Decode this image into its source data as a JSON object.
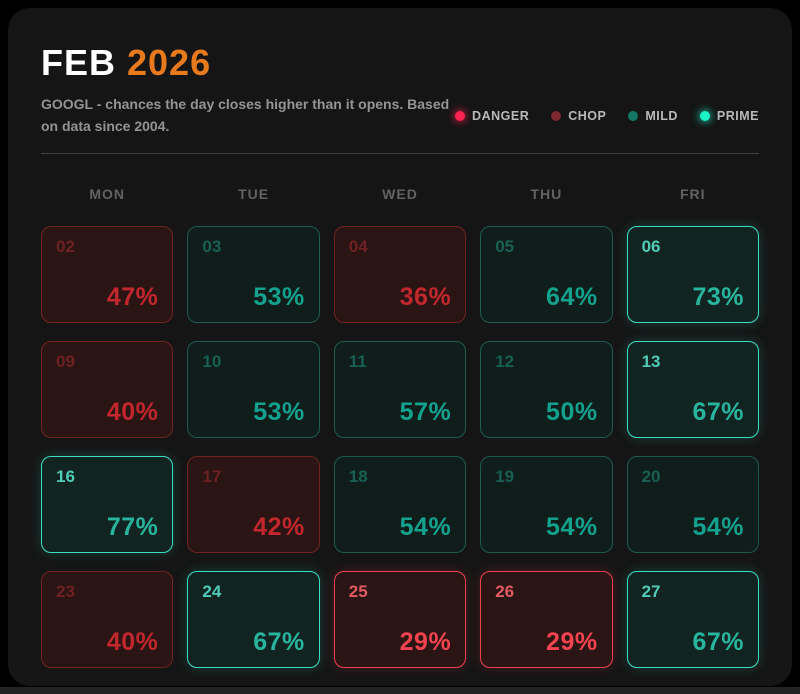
{
  "header": {
    "month": "FEB",
    "year": "2026",
    "subtitle": "GOOGL - chances the day closes higher than it opens. Based on data since 2004."
  },
  "legend": {
    "items": [
      {
        "key": "danger",
        "label": "DANGER",
        "color": "#fb2150"
      },
      {
        "key": "chop",
        "label": "CHOP",
        "color": "#7c282c"
      },
      {
        "key": "mild",
        "label": "MILD",
        "color": "#147763"
      },
      {
        "key": "prime",
        "label": "PRIME",
        "color": "#1cf2c7"
      }
    ]
  },
  "colors": {
    "accent_orange": "#e87a1e",
    "danger_text": "#f2434f",
    "chop_text": "#c1272c",
    "mild_text": "#13a28d",
    "prime_text": "#28b59e",
    "card_background": "#151515"
  },
  "chart_data": {
    "type": "heatmap",
    "title": "FEB 2026",
    "subtitle": "GOOGL - chances the day closes higher than it opens. Based on data since 2004.",
    "x_categories": [
      "MON",
      "TUE",
      "WED",
      "THU",
      "FRI"
    ],
    "legend_entries": [
      "DANGER",
      "CHOP",
      "MILD",
      "PRIME"
    ],
    "legend_position": "top-right",
    "value_unit": "%",
    "cells": [
      {
        "date": 2,
        "weekday": "MON",
        "week": 1,
        "percent": 47,
        "category": "chop"
      },
      {
        "date": 3,
        "weekday": "TUE",
        "week": 1,
        "percent": 53,
        "category": "mild"
      },
      {
        "date": 4,
        "weekday": "WED",
        "week": 1,
        "percent": 36,
        "category": "chop"
      },
      {
        "date": 5,
        "weekday": "THU",
        "week": 1,
        "percent": 64,
        "category": "mild"
      },
      {
        "date": 6,
        "weekday": "FRI",
        "week": 1,
        "percent": 73,
        "category": "prime"
      },
      {
        "date": 9,
        "weekday": "MON",
        "week": 2,
        "percent": 40,
        "category": "chop"
      },
      {
        "date": 10,
        "weekday": "TUE",
        "week": 2,
        "percent": 53,
        "category": "mild"
      },
      {
        "date": 11,
        "weekday": "WED",
        "week": 2,
        "percent": 57,
        "category": "mild"
      },
      {
        "date": 12,
        "weekday": "THU",
        "week": 2,
        "percent": 50,
        "category": "mild"
      },
      {
        "date": 13,
        "weekday": "FRI",
        "week": 2,
        "percent": 67,
        "category": "prime"
      },
      {
        "date": 16,
        "weekday": "MON",
        "week": 3,
        "percent": 77,
        "category": "prime"
      },
      {
        "date": 17,
        "weekday": "TUE",
        "week": 3,
        "percent": 42,
        "category": "chop"
      },
      {
        "date": 18,
        "weekday": "WED",
        "week": 3,
        "percent": 54,
        "category": "mild"
      },
      {
        "date": 19,
        "weekday": "THU",
        "week": 3,
        "percent": 54,
        "category": "mild"
      },
      {
        "date": 20,
        "weekday": "FRI",
        "week": 3,
        "percent": 54,
        "category": "mild"
      },
      {
        "date": 23,
        "weekday": "MON",
        "week": 4,
        "percent": 40,
        "category": "chop"
      },
      {
        "date": 24,
        "weekday": "TUE",
        "week": 4,
        "percent": 67,
        "category": "prime"
      },
      {
        "date": 25,
        "weekday": "WED",
        "week": 4,
        "percent": 29,
        "category": "danger"
      },
      {
        "date": 26,
        "weekday": "THU",
        "week": 4,
        "percent": 29,
        "category": "danger"
      },
      {
        "date": 27,
        "weekday": "FRI",
        "week": 4,
        "percent": 67,
        "category": "prime"
      }
    ]
  }
}
